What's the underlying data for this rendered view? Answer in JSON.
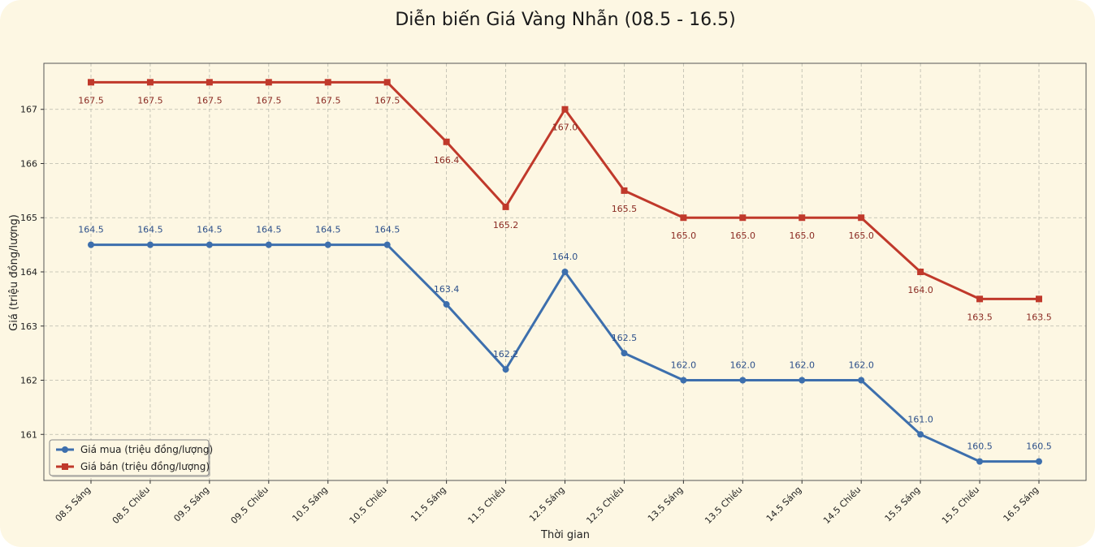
{
  "chart_data": {
    "type": "line",
    "title": "Diễn biến Giá Vàng Nhẫn (08.5 - 16.5)",
    "xlabel": "Thời gian",
    "ylabel": "Giá (triệu đồng/lượng)",
    "categories": [
      "08.5 Sáng",
      "08.5 Chiều",
      "09.5 Sáng",
      "09.5 Chiều",
      "10.5 Sáng",
      "10.5 Chiều",
      "11.5 Sáng",
      "11.5 Chiều",
      "12.5 Sáng",
      "12.5 Chiều",
      "13.5 Sáng",
      "13.5 Chiều",
      "14.5 Sáng",
      "14.5 Chiều",
      "15.5 Sáng",
      "15.5 Chiều",
      "16.5 Sáng"
    ],
    "yticks": [
      161,
      162,
      163,
      164,
      165,
      166,
      167
    ],
    "ylim": [
      160.15,
      167.85
    ],
    "grid": true,
    "legend_position": "bottom-left",
    "series": [
      {
        "name": "Giá mua (triệu đồng/lượng)",
        "color": "#3d6fad",
        "marker": "circle",
        "values": [
          164.5,
          164.5,
          164.5,
          164.5,
          164.5,
          164.5,
          163.4,
          162.2,
          164.0,
          162.5,
          162.0,
          162.0,
          162.0,
          162.0,
          161.0,
          160.5,
          160.5
        ],
        "labels": [
          "164.5",
          "164.5",
          "164.5",
          "164.5",
          "164.5",
          "164.5",
          "163.4",
          "162.2",
          "164.0",
          "162.5",
          "162.0",
          "162.0",
          "162.0",
          "162.0",
          "161.0",
          "160.5",
          "160.5"
        ]
      },
      {
        "name": "Giá bán (triệu đồng/lượng)",
        "color": "#c0392b",
        "marker": "square",
        "values": [
          167.5,
          167.5,
          167.5,
          167.5,
          167.5,
          167.5,
          166.4,
          165.2,
          167.0,
          165.5,
          165.0,
          165.0,
          165.0,
          165.0,
          164.0,
          163.5,
          163.5
        ],
        "labels": [
          "167.5",
          "167.5",
          "167.5",
          "167.5",
          "167.5",
          "167.5",
          "166.4",
          "165.2",
          "167.0",
          "165.5",
          "165.0",
          "165.0",
          "165.0",
          "165.0",
          "164.0",
          "163.5",
          "163.5"
        ]
      }
    ]
  }
}
